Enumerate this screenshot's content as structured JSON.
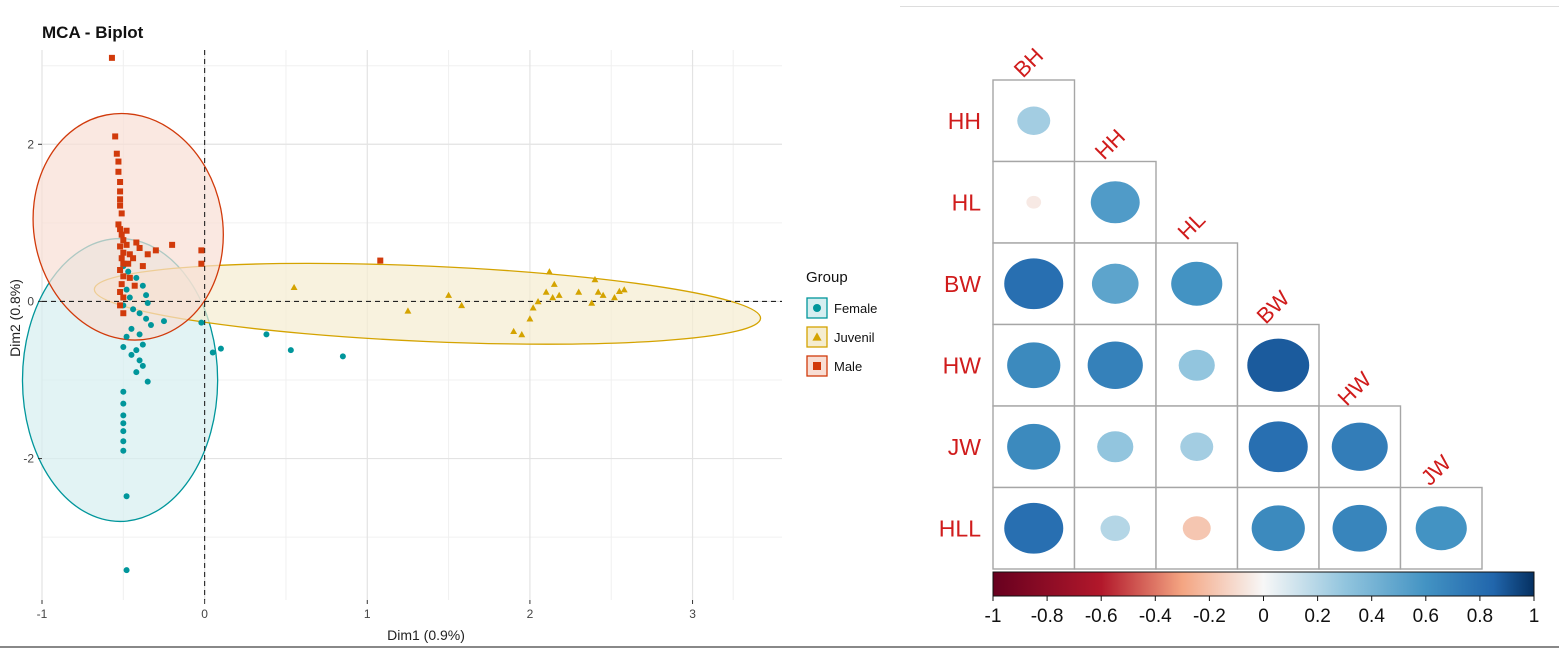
{
  "chart_data": [
    {
      "type": "scatter",
      "title": "MCA - Biplot",
      "xlabel": "Dim1 (0.9%)",
      "ylabel": "Dim2 (0.8%)",
      "xlim": [
        -1.0,
        3.55
      ],
      "ylim": [
        -3.8,
        3.2
      ],
      "xticks": [
        -1,
        0,
        1,
        2,
        3
      ],
      "yticks": [
        -2,
        0,
        2
      ],
      "xtick_labels": [
        "-1",
        "0",
        "1",
        "2",
        "3"
      ],
      "ytick_labels": [
        "-2",
        "0",
        "2"
      ],
      "grid": true,
      "reference_lines": [
        0,
        0
      ],
      "legend": {
        "title": "Group",
        "placement": "right"
      },
      "series": [
        {
          "name": "Female",
          "marker": "circle",
          "color": "#00969B",
          "fill": "#D6EEF0",
          "ellipse": {
            "cx": -0.52,
            "cy": -1.0,
            "rx": 0.6,
            "ry": 1.8
          },
          "points": [
            [
              -0.5,
              0.45
            ],
            [
              -0.47,
              0.38
            ],
            [
              -0.42,
              0.3
            ],
            [
              -0.38,
              0.2
            ],
            [
              -0.36,
              0.08
            ],
            [
              -0.35,
              -0.02
            ],
            [
              -0.48,
              0.15
            ],
            [
              -0.46,
              0.05
            ],
            [
              -0.5,
              -0.05
            ],
            [
              -0.44,
              -0.1
            ],
            [
              -0.4,
              -0.15
            ],
            [
              -0.36,
              -0.22
            ],
            [
              -0.33,
              -0.3
            ],
            [
              -0.45,
              -0.35
            ],
            [
              -0.4,
              -0.42
            ],
            [
              -0.38,
              -0.55
            ],
            [
              -0.42,
              -0.62
            ],
            [
              -0.45,
              -0.68
            ],
            [
              -0.4,
              -0.75
            ],
            [
              -0.38,
              -0.82
            ],
            [
              -0.42,
              -0.9
            ],
            [
              -0.35,
              -1.02
            ],
            [
              -0.48,
              -0.45
            ],
            [
              -0.5,
              -0.58
            ],
            [
              -0.5,
              -1.15
            ],
            [
              -0.5,
              -1.3
            ],
            [
              -0.5,
              -1.45
            ],
            [
              -0.5,
              -1.55
            ],
            [
              -0.5,
              -1.65
            ],
            [
              -0.5,
              -1.78
            ],
            [
              -0.5,
              -1.9
            ],
            [
              -0.48,
              -2.48
            ],
            [
              -0.48,
              -3.42
            ],
            [
              -0.25,
              -0.25
            ],
            [
              -0.02,
              -0.27
            ],
            [
              0.05,
              -0.65
            ],
            [
              0.1,
              -0.6
            ],
            [
              0.38,
              -0.42
            ],
            [
              0.53,
              -0.62
            ],
            [
              0.85,
              -0.7
            ]
          ]
        },
        {
          "name": "Juvenil",
          "marker": "triangle",
          "color": "#D4A300",
          "fill": "#F5EDD0",
          "ellipse": {
            "cx": 1.37,
            "cy": -0.03,
            "rx": 2.05,
            "ry": 0.48,
            "angle": 2.5
          },
          "points": [
            [
              0.55,
              0.18
            ],
            [
              1.25,
              -0.12
            ],
            [
              1.5,
              0.08
            ],
            [
              1.58,
              -0.05
            ],
            [
              1.9,
              -0.38
            ],
            [
              1.95,
              -0.42
            ],
            [
              2.0,
              -0.22
            ],
            [
              2.02,
              -0.08
            ],
            [
              2.05,
              0.0
            ],
            [
              2.1,
              0.12
            ],
            [
              2.12,
              0.38
            ],
            [
              2.15,
              0.22
            ],
            [
              2.14,
              0.05
            ],
            [
              2.18,
              0.08
            ],
            [
              2.3,
              0.12
            ],
            [
              2.38,
              -0.02
            ],
            [
              2.4,
              0.28
            ],
            [
              2.42,
              0.12
            ],
            [
              2.45,
              0.08
            ],
            [
              2.52,
              0.05
            ],
            [
              2.55,
              0.13
            ],
            [
              2.58,
              0.15
            ]
          ]
        },
        {
          "name": "Male",
          "marker": "square",
          "color": "#D13A0B",
          "fill": "#F8DED4",
          "ellipse": {
            "cx": -0.47,
            "cy": 0.95,
            "rx": 0.58,
            "ry": 1.45,
            "angle": -11
          },
          "points": [
            [
              -0.57,
              3.1
            ],
            [
              -0.55,
              2.1
            ],
            [
              -0.54,
              1.88
            ],
            [
              -0.53,
              1.78
            ],
            [
              -0.53,
              1.65
            ],
            [
              -0.52,
              1.52
            ],
            [
              -0.52,
              1.4
            ],
            [
              -0.52,
              1.3
            ],
            [
              -0.52,
              1.22
            ],
            [
              -0.51,
              1.12
            ],
            [
              -0.53,
              0.98
            ],
            [
              -0.52,
              0.92
            ],
            [
              -0.51,
              0.85
            ],
            [
              -0.5,
              0.78
            ],
            [
              -0.52,
              0.7
            ],
            [
              -0.5,
              0.62
            ],
            [
              -0.51,
              0.55
            ],
            [
              -0.5,
              0.48
            ],
            [
              -0.52,
              0.4
            ],
            [
              -0.5,
              0.32
            ],
            [
              -0.51,
              0.22
            ],
            [
              -0.52,
              0.12
            ],
            [
              -0.5,
              0.05
            ],
            [
              -0.52,
              -0.05
            ],
            [
              -0.5,
              -0.15
            ],
            [
              -0.48,
              0.72
            ],
            [
              -0.46,
              0.6
            ],
            [
              -0.44,
              0.55
            ],
            [
              -0.42,
              0.75
            ],
            [
              -0.4,
              0.68
            ],
            [
              -0.38,
              0.45
            ],
            [
              -0.35,
              0.6
            ],
            [
              -0.3,
              0.65
            ],
            [
              -0.2,
              0.72
            ],
            [
              -0.02,
              0.65
            ],
            [
              -0.02,
              0.48
            ],
            [
              1.08,
              0.52
            ],
            [
              -0.46,
              0.3
            ],
            [
              -0.43,
              0.2
            ],
            [
              -0.48,
              0.9
            ],
            [
              -0.47,
              0.48
            ]
          ]
        }
      ]
    },
    {
      "type": "heatmap",
      "variant": "correlogram-lower",
      "row_labels": [
        "HH",
        "HL",
        "BW",
        "HW",
        "JW",
        "HLL"
      ],
      "col_labels": [
        "BH",
        "HH",
        "HL",
        "BW",
        "HW",
        "JW"
      ],
      "values": [
        [
          0.25
        ],
        [
          -0.05,
          0.55
        ],
        [
          0.8,
          0.5,
          0.6
        ],
        [
          0.65,
          0.7,
          0.3,
          0.88
        ],
        [
          0.65,
          0.3,
          0.25,
          0.8,
          0.72
        ],
        [
          0.8,
          0.2,
          -0.18,
          0.65,
          0.68,
          0.6
        ]
      ],
      "colorbar": {
        "range": [
          -1,
          1
        ],
        "ticks": [
          "-1",
          "-0.8",
          "-0.6",
          "-0.4",
          "-0.2",
          "0",
          "0.2",
          "0.4",
          "0.6",
          "0.8",
          "1"
        ]
      },
      "label_color": "#D01C1C"
    }
  ]
}
